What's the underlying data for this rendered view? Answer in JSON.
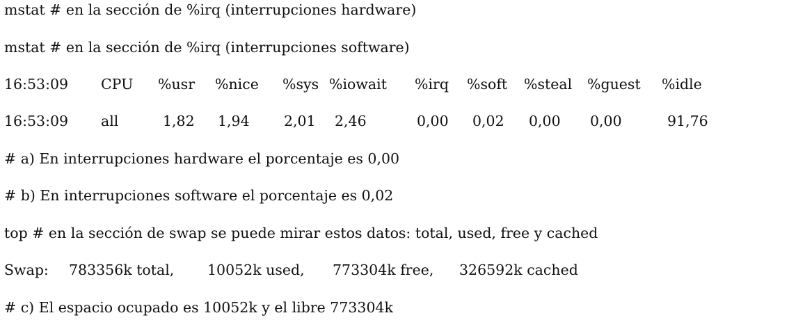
{
  "lines": {
    "l1": "mstat # en la sección de %irq (interrupciones hardware)",
    "l2": "mstat # en la sección de %irq (interrupciones software)",
    "a": "# a) En interrupciones hardware el porcentaje es 0,00",
    "b": "# b) En interrupciones software el porcentaje es 0,02",
    "top": "top # en la sección de swap se puede mirar estos datos: total, used, free y cached",
    "c": "# c) El espacio ocupado es 10052k y el libre 773304k"
  },
  "table": {
    "headers": [
      "16:53:09",
      "CPU",
      "%usr",
      "%nice",
      "%sys",
      "%iowait",
      "%irq",
      "%soft",
      "%steal",
      "%guest",
      "%idle"
    ],
    "values": [
      "16:53:09",
      "all",
      "1,82",
      "1,94",
      "2,01",
      "2,46",
      "0,00",
      "0,02",
      "0,00",
      "0,00",
      "91,76"
    ]
  },
  "swap": {
    "label": "Swap:",
    "total": "783356k total,",
    "used": "10052k used,",
    "free": "773304k free,",
    "cached": "326592k cached"
  }
}
